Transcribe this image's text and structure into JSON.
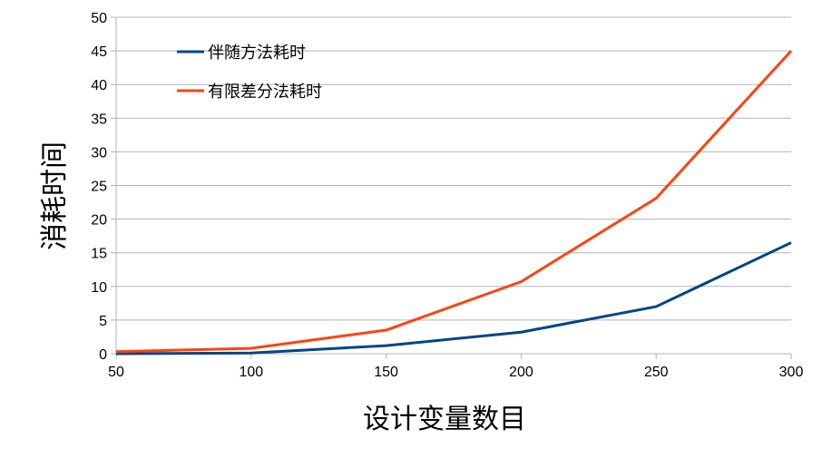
{
  "chart_data": {
    "type": "line",
    "title": "",
    "xlabel": "设计变量数目",
    "ylabel": "消耗时间",
    "x": [
      50,
      100,
      150,
      200,
      250,
      300
    ],
    "xlim": [
      50,
      300
    ],
    "ylim": [
      0,
      50
    ],
    "xticks": [
      50,
      100,
      150,
      200,
      250,
      300
    ],
    "yticks": [
      0,
      5,
      10,
      15,
      20,
      25,
      30,
      35,
      40,
      45,
      50
    ],
    "grid": "horizontal",
    "legend_position": "top-left",
    "series": [
      {
        "name": "伴随方法耗时",
        "color": "#004586",
        "values": [
          0.0,
          0.1,
          1.2,
          3.2,
          7.0,
          16.5
        ]
      },
      {
        "name": "有限差分法耗时",
        "color": "#ff420e",
        "values": [
          0.3,
          0.8,
          3.5,
          10.7,
          23.1,
          45.0
        ]
      }
    ]
  }
}
